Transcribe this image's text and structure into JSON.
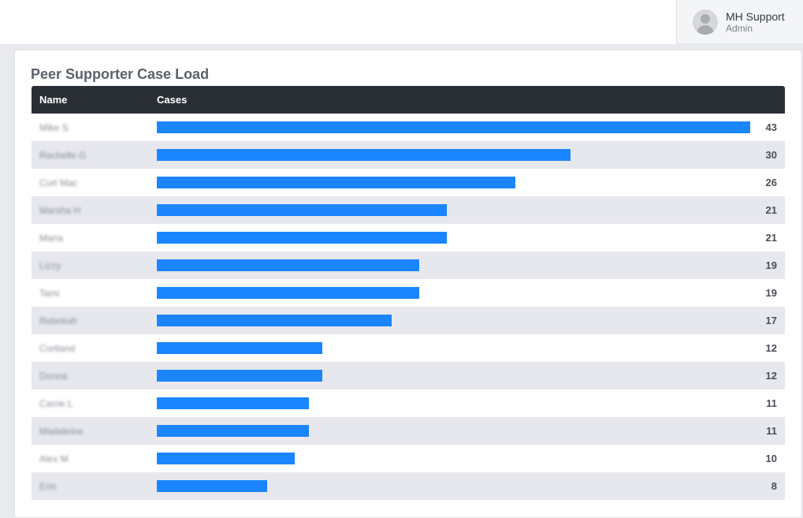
{
  "user": {
    "name": "MH Support",
    "role": "Admin"
  },
  "card": {
    "title": "Peer Supporter Case Load"
  },
  "table": {
    "col_name": "Name",
    "col_cases": "Cases"
  },
  "colors": {
    "bar": "#1a85ff",
    "header": "#2a2f36"
  },
  "chart_data": {
    "type": "bar",
    "title": "Peer Supporter Case Load",
    "categories": [
      "Mike S",
      "Rachelle G",
      "Curt Mac",
      "Marsha H",
      "Maria",
      "Lizzy",
      "Tami",
      "Rebekah",
      "Cortland",
      "Donna",
      "Carrie L",
      "Madaleine",
      "Alex M",
      "Erin"
    ],
    "values": [
      43,
      30,
      26,
      21,
      21,
      19,
      19,
      17,
      12,
      12,
      11,
      11,
      10,
      8
    ],
    "xlabel": "Name",
    "ylabel": "Cases",
    "ylim": [
      0,
      43
    ]
  }
}
